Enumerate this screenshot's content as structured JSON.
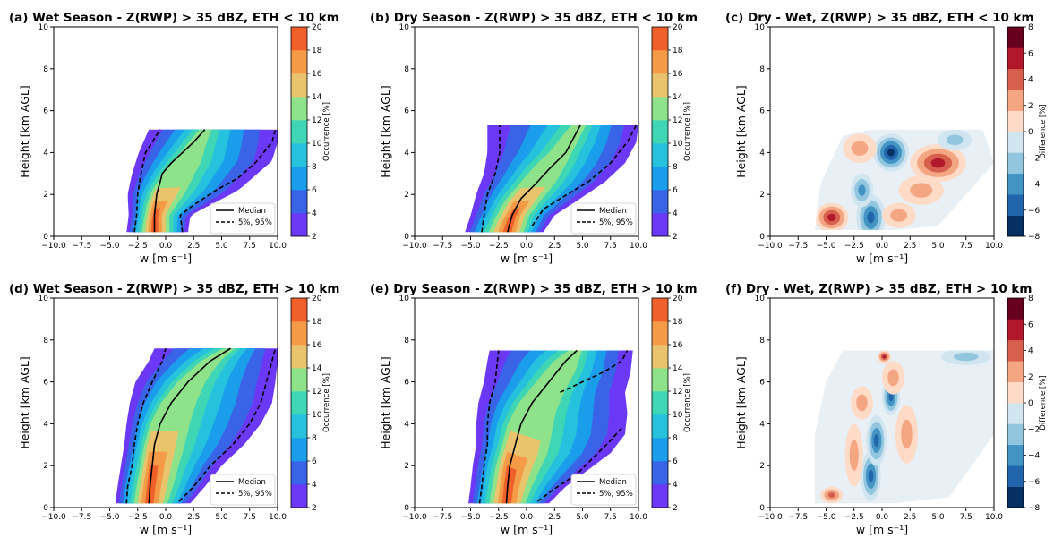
{
  "chart_data": [
    {
      "id": "a",
      "type": "filled-contour",
      "kind": "occurrence",
      "title": "(a) Wet Season - Z(RWP) > 35 dBZ, ETH < 10 km",
      "xlabel": "w [m s⁻¹]",
      "ylabel": "Height [km AGL]",
      "xlim": [
        -10,
        10
      ],
      "ylim": [
        0,
        10
      ],
      "xticks": [
        "−10.0",
        "−7.5",
        "−5.0",
        "−2.5",
        "0.0",
        "2.5",
        "5.0",
        "7.5",
        "10.0"
      ],
      "yticks": [
        "0",
        "2",
        "4",
        "6",
        "8",
        "10"
      ],
      "colorbar": {
        "label": "Occurrence [%]",
        "range": [
          2,
          20
        ],
        "ticks": [
          "2",
          "4",
          "6",
          "8",
          "10",
          "12",
          "14",
          "16",
          "18",
          "20"
        ]
      },
      "legend": {
        "position": "lower-right",
        "entries": [
          {
            "label": "Median",
            "style": "solid"
          },
          {
            "label": "5%, 95%",
            "style": "dashed"
          }
        ]
      },
      "top_height": 5.1,
      "median": [
        [
          -1.0,
          0.2
        ],
        [
          -1.0,
          1.0
        ],
        [
          -0.8,
          2.0
        ],
        [
          -0.3,
          3.0
        ],
        [
          0.5,
          3.5
        ],
        [
          1.5,
          4.0
        ],
        [
          2.5,
          4.5
        ],
        [
          3.5,
          5.1
        ]
      ],
      "p5": [
        [
          -2.8,
          0.2
        ],
        [
          -2.6,
          1.0
        ],
        [
          -2.5,
          2.0
        ],
        [
          -2.2,
          3.0
        ],
        [
          -1.8,
          4.0
        ],
        [
          -1.2,
          4.5
        ],
        [
          -0.5,
          5.1
        ]
      ],
      "p95": [
        [
          1.5,
          0.2
        ],
        [
          1.3,
          1.0
        ],
        [
          2.5,
          1.5
        ],
        [
          4.5,
          2.2
        ],
        [
          6.5,
          2.8
        ],
        [
          8.0,
          3.5
        ],
        [
          9.5,
          4.5
        ],
        [
          9.8,
          5.1
        ]
      ],
      "envelope_left": [
        [
          -3.5,
          0.2
        ],
        [
          -3.3,
          1.0
        ],
        [
          -3.4,
          2.0
        ],
        [
          -3.0,
          3.0
        ],
        [
          -2.4,
          4.0
        ],
        [
          -1.5,
          5.1
        ]
      ],
      "envelope_right": [
        [
          2.0,
          0.2
        ],
        [
          2.2,
          1.0
        ],
        [
          4.0,
          1.5
        ],
        [
          6.5,
          2.2
        ],
        [
          8.0,
          2.9
        ],
        [
          9.5,
          3.6
        ],
        [
          10.0,
          4.5
        ],
        [
          10.0,
          5.1
        ]
      ]
    },
    {
      "id": "b",
      "type": "filled-contour",
      "kind": "occurrence",
      "title": "(b) Dry Season - Z(RWP) > 35 dBZ, ETH < 10 km",
      "xlabel": "w [m s⁻¹]",
      "ylabel": "Height [km AGL]",
      "xlim": [
        -10,
        10
      ],
      "ylim": [
        0,
        10
      ],
      "xticks": [
        "−10.0",
        "−7.5",
        "−5.0",
        "−2.5",
        "0.0",
        "2.5",
        "5.0",
        "7.5",
        "10.0"
      ],
      "yticks": [
        "0",
        "2",
        "4",
        "6",
        "8",
        "10"
      ],
      "colorbar": {
        "label": "Occurrence [%]",
        "range": [
          2,
          20
        ],
        "ticks": [
          "2",
          "4",
          "6",
          "8",
          "10",
          "12",
          "14",
          "16",
          "18",
          "20"
        ]
      },
      "legend": {
        "position": "lower-right",
        "entries": [
          {
            "label": "Median",
            "style": "solid"
          },
          {
            "label": "5%, 95%",
            "style": "dashed"
          }
        ]
      },
      "top_height": 5.3,
      "median": [
        [
          -1.7,
          0.2
        ],
        [
          -1.3,
          1.0
        ],
        [
          -0.5,
          1.8
        ],
        [
          0.8,
          2.5
        ],
        [
          2.0,
          3.2
        ],
        [
          3.5,
          4.0
        ],
        [
          4.8,
          5.3
        ]
      ],
      "p5": [
        [
          -4.0,
          0.2
        ],
        [
          -3.8,
          1.0
        ],
        [
          -3.5,
          2.0
        ],
        [
          -2.8,
          3.0
        ],
        [
          -2.4,
          4.0
        ],
        [
          -2.4,
          5.3
        ]
      ],
      "p95": [
        [
          0.5,
          0.5
        ],
        [
          1.5,
          1.3
        ],
        [
          3.0,
          1.8
        ],
        [
          5.5,
          2.6
        ],
        [
          7.5,
          3.5
        ],
        [
          9.0,
          4.5
        ],
        [
          9.8,
          5.3
        ]
      ],
      "envelope_left": [
        [
          -5.5,
          0.2
        ],
        [
          -5.0,
          1.0
        ],
        [
          -4.5,
          2.0
        ],
        [
          -3.8,
          3.0
        ],
        [
          -3.5,
          4.0
        ],
        [
          -3.5,
          5.3
        ]
      ],
      "envelope_right": [
        [
          1.5,
          0.2
        ],
        [
          2.5,
          1.0
        ],
        [
          4.5,
          1.7
        ],
        [
          7.0,
          2.6
        ],
        [
          8.8,
          3.5
        ],
        [
          9.8,
          4.5
        ],
        [
          10.0,
          5.3
        ]
      ]
    },
    {
      "id": "c",
      "type": "filled-contour",
      "kind": "difference",
      "title": "(c) Dry - Wet, Z(RWP) > 35 dBZ, ETH < 10 km",
      "xlabel": "w [m s⁻¹]",
      "ylabel": "Height [km AGL]",
      "xlim": [
        -10,
        10
      ],
      "ylim": [
        0,
        10
      ],
      "xticks": [
        "−10.0",
        "−7.5",
        "−5.0",
        "−2.5",
        "0.0",
        "2.5",
        "5.0",
        "7.5",
        "10.0"
      ],
      "yticks": [
        "0",
        "2",
        "4",
        "6",
        "8",
        "10"
      ],
      "colorbar": {
        "label": "Difference [%]",
        "range": [
          -8,
          8
        ],
        "ticks": [
          "−8",
          "−6",
          "−4",
          "−2",
          "0",
          "2",
          "4",
          "6",
          "8"
        ]
      },
      "top_height": 5.1,
      "domain": [
        [
          -6.0,
          0.3
        ],
        [
          -5.5,
          2.5
        ],
        [
          -3.5,
          4.8
        ],
        [
          -1.0,
          5.1
        ],
        [
          9.0,
          5.1
        ],
        [
          10.0,
          3.5
        ],
        [
          5.0,
          0.5
        ],
        [
          1.0,
          0.3
        ]
      ],
      "blobs": [
        {
          "x": -4.5,
          "y": 0.9,
          "rx": 1.5,
          "ry": 0.7,
          "value": 5
        },
        {
          "x": -1.0,
          "y": 0.9,
          "rx": 1.3,
          "ry": 1.1,
          "value": -6
        },
        {
          "x": -1.8,
          "y": 2.2,
          "rx": 1.0,
          "ry": 0.8,
          "value": -4
        },
        {
          "x": 0.8,
          "y": 4.0,
          "rx": 1.6,
          "ry": 0.9,
          "value": -7
        },
        {
          "x": 5.0,
          "y": 3.5,
          "rx": 2.5,
          "ry": 0.9,
          "value": 6
        },
        {
          "x": 3.5,
          "y": 2.2,
          "rx": 2.0,
          "ry": 0.7,
          "value": 3
        },
        {
          "x": -2.0,
          "y": 4.2,
          "rx": 1.5,
          "ry": 0.7,
          "value": 3
        },
        {
          "x": 1.5,
          "y": 1.0,
          "rx": 1.5,
          "ry": 0.6,
          "value": 2
        },
        {
          "x": 6.5,
          "y": 4.6,
          "rx": 1.5,
          "ry": 0.5,
          "value": -2
        }
      ]
    },
    {
      "id": "d",
      "type": "filled-contour",
      "kind": "occurrence",
      "title": "(d) Wet Season - Z(RWP) > 35 dBZ, ETH > 10 km",
      "xlabel": "w [m s⁻¹]",
      "ylabel": "Height [km AGL]",
      "xlim": [
        -10,
        10
      ],
      "ylim": [
        0,
        10
      ],
      "xticks": [
        "−10.0",
        "−7.5",
        "−5.0",
        "−2.5",
        "0.0",
        "2.5",
        "5.0",
        "7.5",
        "10.0"
      ],
      "yticks": [
        "0",
        "2",
        "4",
        "6",
        "8",
        "10"
      ],
      "colorbar": {
        "label": "Occurrence [%]",
        "range": [
          2,
          20
        ],
        "ticks": [
          "2",
          "4",
          "6",
          "8",
          "10",
          "12",
          "14",
          "16",
          "18",
          "20"
        ]
      },
      "legend": {
        "position": "lower-right",
        "entries": [
          {
            "label": "Median",
            "style": "solid"
          },
          {
            "label": "5%, 95%",
            "style": "dashed"
          }
        ]
      },
      "top_height": 7.6,
      "median": [
        [
          -1.5,
          0.2
        ],
        [
          -1.4,
          1.0
        ],
        [
          -1.2,
          2.0
        ],
        [
          -1.0,
          3.0
        ],
        [
          -0.5,
          4.0
        ],
        [
          0.5,
          5.0
        ],
        [
          2.0,
          6.0
        ],
        [
          4.0,
          7.0
        ],
        [
          5.8,
          7.6
        ]
      ],
      "p5": [
        [
          -3.5,
          0.2
        ],
        [
          -3.4,
          1.0
        ],
        [
          -3.0,
          2.0
        ],
        [
          -2.8,
          3.0
        ],
        [
          -2.5,
          4.0
        ],
        [
          -2.0,
          5.0
        ],
        [
          -1.2,
          6.0
        ],
        [
          -0.3,
          7.0
        ],
        [
          0.0,
          7.6
        ]
      ],
      "p95": [
        [
          1.2,
          0.3
        ],
        [
          2.5,
          1.0
        ],
        [
          4.0,
          2.0
        ],
        [
          6.0,
          3.0
        ],
        [
          7.5,
          4.0
        ],
        [
          8.5,
          5.0
        ],
        [
          9.0,
          6.0
        ],
        [
          9.5,
          7.0
        ],
        [
          9.8,
          7.6
        ]
      ],
      "envelope_left": [
        [
          -4.5,
          0.2
        ],
        [
          -4.3,
          1.0
        ],
        [
          -4.0,
          2.0
        ],
        [
          -3.7,
          3.0
        ],
        [
          -3.5,
          4.0
        ],
        [
          -3.2,
          5.0
        ],
        [
          -2.7,
          6.0
        ],
        [
          -1.5,
          7.0
        ],
        [
          -1.0,
          7.6
        ]
      ],
      "envelope_right": [
        [
          2.2,
          0.2
        ],
        [
          3.5,
          1.0
        ],
        [
          5.0,
          2.0
        ],
        [
          7.0,
          3.0
        ],
        [
          8.5,
          4.0
        ],
        [
          9.5,
          5.0
        ],
        [
          9.8,
          6.0
        ],
        [
          10.0,
          7.0
        ],
        [
          10.0,
          7.6
        ]
      ]
    },
    {
      "id": "e",
      "type": "filled-contour",
      "kind": "occurrence",
      "title": "(e) Dry Season - Z(RWP) > 35 dBZ, ETH > 10 km",
      "xlabel": "w [m s⁻¹]",
      "ylabel": "Height [km AGL]",
      "xlim": [
        -10,
        10
      ],
      "ylim": [
        0,
        10
      ],
      "xticks": [
        "−10.0",
        "−7.5",
        "−5.0",
        "−2.5",
        "0.0",
        "2.5",
        "5.0",
        "7.5",
        "10.0"
      ],
      "yticks": [
        "0",
        "2",
        "4",
        "6",
        "8",
        "10"
      ],
      "colorbar": {
        "label": "Occurrence [%]",
        "range": [
          2,
          20
        ],
        "ticks": [
          "2",
          "4",
          "6",
          "8",
          "10",
          "12",
          "14",
          "16",
          "18",
          "20"
        ]
      },
      "legend": {
        "position": "lower-right",
        "entries": [
          {
            "label": "Median",
            "style": "solid"
          },
          {
            "label": "5%, 95%",
            "style": "dashed"
          }
        ]
      },
      "top_height": 7.5,
      "median": [
        [
          -1.8,
          0.2
        ],
        [
          -1.7,
          1.0
        ],
        [
          -1.5,
          2.0
        ],
        [
          -1.0,
          3.0
        ],
        [
          -0.5,
          4.0
        ],
        [
          0.5,
          5.0
        ],
        [
          2.0,
          6.0
        ],
        [
          3.5,
          7.0
        ],
        [
          4.5,
          7.5
        ]
      ],
      "p5": [
        [
          -4.2,
          0.2
        ],
        [
          -4.0,
          1.0
        ],
        [
          -3.8,
          2.0
        ],
        [
          -3.5,
          3.0
        ],
        [
          -3.5,
          4.0
        ],
        [
          -3.3,
          5.0
        ],
        [
          -2.8,
          6.0
        ],
        [
          -2.6,
          7.0
        ],
        [
          -2.5,
          7.5
        ]
      ],
      "p95": [
        [
          1.0,
          0.3
        ],
        [
          2.5,
          0.9
        ],
        [
          4.5,
          1.6
        ],
        [
          6.0,
          2.4
        ],
        [
          7.5,
          3.2
        ],
        [
          8.5,
          3.8
        ]
      ],
      "p95_upper": [
        [
          3.0,
          5.5
        ],
        [
          5.0,
          6.0
        ],
        [
          7.0,
          6.5
        ],
        [
          8.5,
          7.0
        ],
        [
          9.0,
          7.5
        ]
      ],
      "envelope_left": [
        [
          -5.2,
          0.2
        ],
        [
          -5.0,
          1.0
        ],
        [
          -4.8,
          2.0
        ],
        [
          -4.5,
          3.0
        ],
        [
          -4.5,
          4.0
        ],
        [
          -4.3,
          5.0
        ],
        [
          -3.8,
          6.0
        ],
        [
          -3.5,
          7.0
        ],
        [
          -3.3,
          7.5
        ]
      ],
      "envelope_right": [
        [
          2.0,
          0.2
        ],
        [
          3.5,
          1.0
        ],
        [
          5.5,
          1.8
        ],
        [
          7.5,
          2.6
        ],
        [
          8.8,
          3.5
        ],
        [
          9.0,
          4.5
        ],
        [
          8.8,
          5.5
        ],
        [
          9.3,
          6.5
        ],
        [
          9.5,
          7.5
        ]
      ]
    },
    {
      "id": "f",
      "type": "filled-contour",
      "kind": "difference",
      "title": "(f) Dry - Wet, Z(RWP) > 35 dBZ, ETH > 10 km",
      "xlabel": "w [m s⁻¹]",
      "ylabel": "Height [km AGL]",
      "xlim": [
        -10,
        10
      ],
      "ylim": [
        0,
        10
      ],
      "xticks": [
        "−10.0",
        "−7.5",
        "−5.0",
        "−2.5",
        "0.0",
        "2.5",
        "5.0",
        "7.5",
        "10.0"
      ],
      "yticks": [
        "0",
        "2",
        "4",
        "6",
        "8",
        "10"
      ],
      "colorbar": {
        "label": "Difference [%]",
        "range": [
          -8,
          8
        ],
        "ticks": [
          "−8",
          "−6",
          "−4",
          "−2",
          "0",
          "2",
          "4",
          "6",
          "8"
        ]
      },
      "top_height": 7.5,
      "domain": [
        [
          -6.0,
          0.2
        ],
        [
          -6.0,
          3.5
        ],
        [
          -5.0,
          6.0
        ],
        [
          -3.5,
          7.5
        ],
        [
          10.0,
          7.5
        ],
        [
          10.0,
          3.5
        ],
        [
          6.0,
          0.5
        ],
        [
          1.0,
          0.2
        ]
      ],
      "blobs": [
        {
          "x": -1.0,
          "y": 1.5,
          "rx": 0.9,
          "ry": 1.2,
          "value": -5
        },
        {
          "x": -0.5,
          "y": 3.2,
          "rx": 0.9,
          "ry": 1.2,
          "value": -6
        },
        {
          "x": 0.8,
          "y": 5.3,
          "rx": 0.8,
          "ry": 0.9,
          "value": -5
        },
        {
          "x": -4.5,
          "y": 0.6,
          "rx": 1.0,
          "ry": 0.4,
          "value": 4
        },
        {
          "x": -2.5,
          "y": 2.5,
          "rx": 0.8,
          "ry": 1.5,
          "value": 3
        },
        {
          "x": 1.0,
          "y": 6.2,
          "rx": 1.0,
          "ry": 0.8,
          "value": 3
        },
        {
          "x": 2.2,
          "y": 3.5,
          "rx": 1.0,
          "ry": 1.4,
          "value": 2
        },
        {
          "x": 0.2,
          "y": 7.2,
          "rx": 0.6,
          "ry": 0.3,
          "value": 5
        },
        {
          "x": 7.5,
          "y": 7.2,
          "rx": 2.2,
          "ry": 0.4,
          "value": -3
        },
        {
          "x": -1.8,
          "y": 5.0,
          "rx": 1.0,
          "ry": 0.8,
          "value": 2
        }
      ]
    }
  ],
  "colors": {
    "occurrence_levels": [
      "#6b38f5",
      "#3a64e8",
      "#1a9dea",
      "#26c2dd",
      "#3ed6b4",
      "#8de28a",
      "#e9c46d",
      "#f59a47",
      "#f0602b"
    ],
    "difference_levels": [
      "#053061",
      "#2166ac",
      "#4393c3",
      "#92c5de",
      "#d1e5f0",
      "#fddbc7",
      "#f4a582",
      "#d6604d",
      "#b2182b",
      "#67001f"
    ]
  }
}
